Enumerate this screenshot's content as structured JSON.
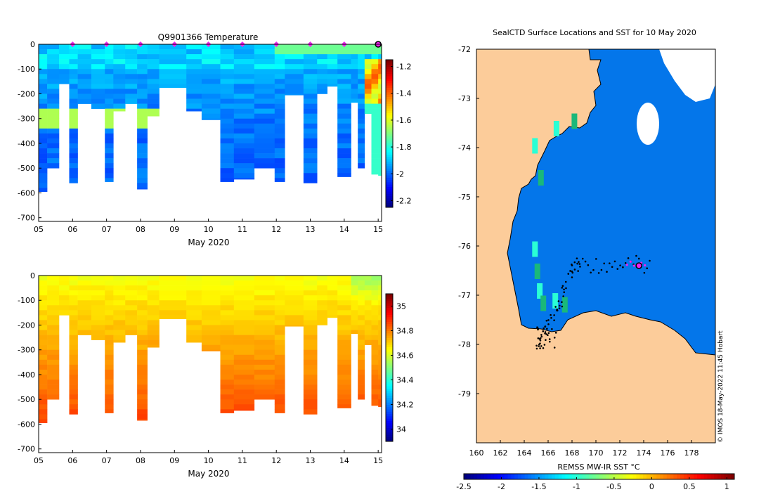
{
  "chart_data": [
    {
      "type": "heatmap",
      "id": "temperature-section",
      "title": "Q9901366  Temperature",
      "xlabel": "May 2020",
      "ylabel": "",
      "x_ticks": [
        "05",
        "06",
        "07",
        "08",
        "09",
        "10",
        "11",
        "12",
        "13",
        "14",
        "15"
      ],
      "xlim": [
        5,
        15.1
      ],
      "y_ticks": [
        0,
        -100,
        -200,
        -300,
        -400,
        -500,
        -600,
        -700
      ],
      "ylim": [
        -715,
        0
      ],
      "colorbar": {
        "ticks": [
          -1.2,
          -1.4,
          -1.6,
          -1.8,
          -2,
          -2.2
        ],
        "range": [
          -2.25,
          -1.15
        ],
        "colormap": "jet"
      },
      "profile_markers_day": [
        6,
        7,
        8,
        9,
        10,
        11,
        12,
        13,
        14
      ],
      "current_marker_day": 15,
      "profiles": [
        {
          "day": 5.0,
          "max_depth": 595
        },
        {
          "day": 5.25,
          "max_depth": 500
        },
        {
          "day": 5.6,
          "max_depth": 160
        },
        {
          "day": 5.9,
          "max_depth": 560
        },
        {
          "day": 6.15,
          "max_depth": 240
        },
        {
          "day": 6.55,
          "max_depth": 260
        },
        {
          "day": 6.95,
          "max_depth": 555
        },
        {
          "day": 7.2,
          "max_depth": 270
        },
        {
          "day": 7.55,
          "max_depth": 240
        },
        {
          "day": 7.9,
          "max_depth": 585
        },
        {
          "day": 8.2,
          "max_depth": 290
        },
        {
          "day": 8.55,
          "max_depth": 175
        },
        {
          "day": 9.35,
          "max_depth": 270
        },
        {
          "day": 9.8,
          "max_depth": 305
        },
        {
          "day": 10.35,
          "max_depth": 555
        },
        {
          "day": 10.75,
          "max_depth": 545
        },
        {
          "day": 11.35,
          "max_depth": 500
        },
        {
          "day": 11.95,
          "max_depth": 555
        },
        {
          "day": 12.25,
          "max_depth": 205
        },
        {
          "day": 12.8,
          "max_depth": 560
        },
        {
          "day": 13.2,
          "max_depth": 200
        },
        {
          "day": 13.5,
          "max_depth": 170
        },
        {
          "day": 13.8,
          "max_depth": 535
        },
        {
          "day": 14.2,
          "max_depth": 235
        },
        {
          "day": 14.4,
          "max_depth": 500
        },
        {
          "day": 14.6,
          "max_depth": 280
        },
        {
          "day": 14.8,
          "max_depth": 525
        },
        {
          "day": 15.0,
          "max_depth": 530
        }
      ]
    },
    {
      "type": "heatmap",
      "id": "salinity-section",
      "title": "",
      "xlabel": "May 2020",
      "x_ticks": [
        "05",
        "06",
        "07",
        "08",
        "09",
        "10",
        "11",
        "12",
        "13",
        "14",
        "15"
      ],
      "xlim": [
        5,
        15.1
      ],
      "y_ticks": [
        0,
        -100,
        -200,
        -300,
        -400,
        -500,
        -600,
        -700
      ],
      "ylim": [
        -715,
        0
      ],
      "colorbar": {
        "ticks": [
          35,
          34.8,
          34.6,
          34.4,
          34.2,
          34
        ],
        "range": [
          33.9,
          35.1
        ],
        "colormap": "jet"
      }
    },
    {
      "type": "heatmap",
      "id": "sst-map",
      "title": "SealCTD Surface Locations and SST for 10 May 2020",
      "x_ticks": [
        "160",
        "162",
        "164",
        "166",
        "168",
        "170",
        "172",
        "174",
        "176",
        "178"
      ],
      "xlim": [
        160,
        180
      ],
      "y_ticks": [
        "-72",
        "-73",
        "-74",
        "-75",
        "-76",
        "-77",
        "-78",
        "-79"
      ],
      "ylim": [
        -80,
        -72
      ],
      "colorbar": {
        "label": "REMSS MW-IR SST °C",
        "ticks": [
          "-2.5",
          "-2",
          "-1.5",
          "-1",
          "-0.5",
          "0",
          "0.5",
          "1"
        ],
        "range": [
          -2.5,
          1.1
        ]
      },
      "open_water_sst": -1.8,
      "coast_warm_sst": -1.0,
      "current_location": {
        "lon": 173.6,
        "lat": -76.4
      }
    }
  ],
  "credit": "© IMOS 18-May-2022 11:45 Hobart",
  "colors": {
    "land": "#fccc9a",
    "ocean": "#0476ea",
    "marker": "#ee22ee"
  }
}
